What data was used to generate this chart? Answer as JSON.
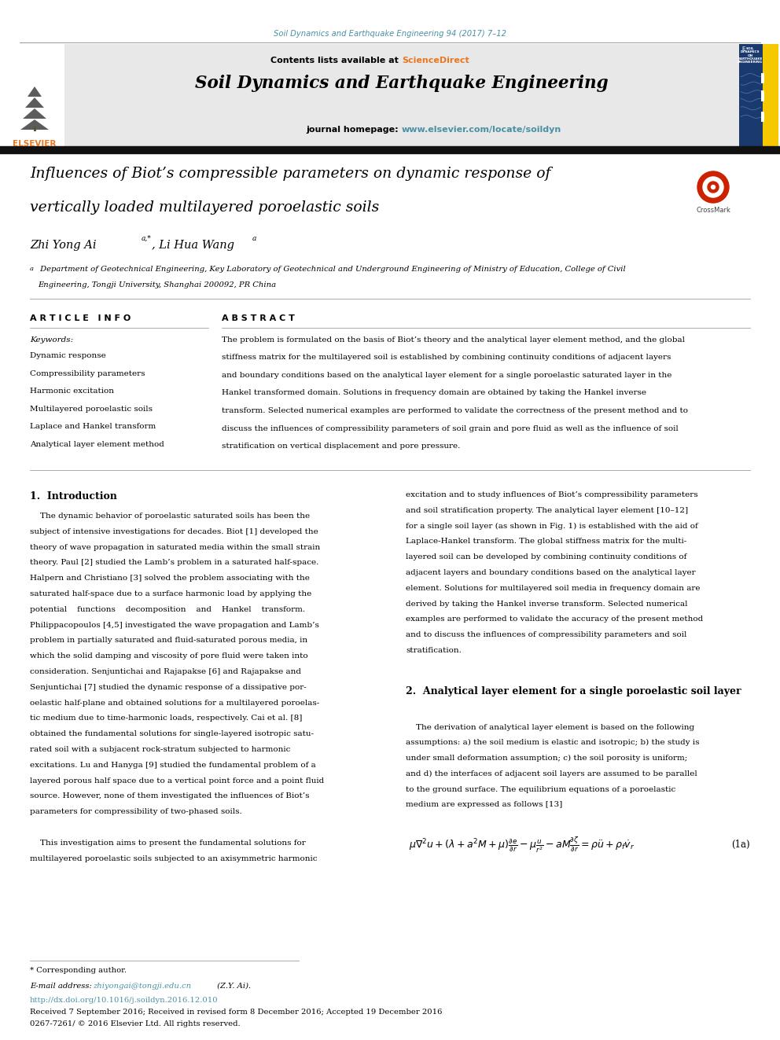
{
  "page_width": 9.92,
  "page_height": 13.23,
  "bg_color": "#ffffff",
  "journal_ref": "Soil Dynamics and Earthquake Engineering 94 (2017) 7–12",
  "journal_ref_color": "#4a90a4",
  "contents_text": "Contents lists available at ",
  "sciencedirect_text": "ScienceDirect",
  "sciencedirect_color": "#e87722",
  "journal_name": "Soil Dynamics and Earthquake Engineering",
  "journal_homepage": "journal homepage: ",
  "journal_url": "www.elsevier.com/locate/soildyn",
  "journal_url_color": "#4a90a4",
  "header_bg": "#e8e8e8",
  "article_title_line1": "Influences of Biot’s compressible parameters on dynamic response of",
  "article_title_line2": "vertically loaded multilayered poroelastic soils",
  "authors": "Zhi Yong Ai",
  "authors_super": "a,*",
  "authors2": ", Li Hua Wang",
  "authors2_super": "a",
  "affiliation_super": "a",
  "affiliation_line1": " Department of Geotechnical Engineering, Key Laboratory of Geotechnical and Underground Engineering of Ministry of Education, College of Civil",
  "affiliation_line2": "Engineering, Tongji University, Shanghai 200092, PR China",
  "article_info_title": "A R T I C L E   I N F O",
  "abstract_title": "A B S T R A C T",
  "keywords_label": "Keywords:",
  "keywords": [
    "Dynamic response",
    "Compressibility parameters",
    "Harmonic excitation",
    "Multilayered poroelastic soils",
    "Laplace and Hankel transform",
    "Analytical layer element method"
  ],
  "abstract_text": "The problem is formulated on the basis of Biot’s theory and the analytical layer element method, and the global\nstiffness matrix for the multilayered soil is established by combining continuity conditions of adjacent layers\nand boundary conditions based on the analytical layer element for a single poroelastic saturated layer in the\nHankel transformed domain. Solutions in frequency domain are obtained by taking the Hankel inverse\ntransform. Selected numerical examples are performed to validate the correctness of the present method and to\ndiscuss the influences of compressibility parameters of soil grain and pore fluid as well as the influence of soil\nstratification on vertical displacement and pore pressure.",
  "section1_title": "1.  Introduction",
  "intro_left_lines": [
    "    The dynamic behavior of poroelastic saturated soils has been the",
    "subject of intensive investigations for decades. Biot [1] developed the",
    "theory of wave propagation in saturated media within the small strain",
    "theory. Paul [2] studied the Lamb’s problem in a saturated half-space.",
    "Halpern and Christiano [3] solved the problem associating with the",
    "saturated half-space due to a surface harmonic load by applying the",
    "potential    functions    decomposition    and    Hankel    transform.",
    "Philippacopoulos [4,5] investigated the wave propagation and Lamb’s",
    "problem in partially saturated and fluid-saturated porous media, in",
    "which the solid damping and viscosity of pore fluid were taken into",
    "consideration. Senjuntichai and Rajapakse [6] and Rajapakse and",
    "Senjuntichai [7] studied the dynamic response of a dissipative por-",
    "oelastic half-plane and obtained solutions for a multilayered poroelas-",
    "tic medium due to time-harmonic loads, respectively. Cai et al. [8]",
    "obtained the fundamental solutions for single-layered isotropic satu-",
    "rated soil with a subjacent rock-stratum subjected to harmonic",
    "excitations. Lu and Hanyga [9] studied the fundamental problem of a",
    "layered porous half space due to a vertical point force and a point fluid",
    "source. However, none of them investigated the influences of Biot’s",
    "parameters for compressibility of two-phased soils.",
    "",
    "    This investigation aims to present the fundamental solutions for",
    "multilayered poroelastic soils subjected to an axisymmetric harmonic"
  ],
  "intro_right_lines": [
    "excitation and to study influences of Biot’s compressibility parameters",
    "and soil stratification property. The analytical layer element [10–12]",
    "for a single soil layer (as shown in Fig. 1) is established with the aid of",
    "Laplace-Hankel transform. The global stiffness matrix for the multi-",
    "layered soil can be developed by combining continuity conditions of",
    "adjacent layers and boundary conditions based on the analytical layer",
    "element. Solutions for multilayered soil media in frequency domain are",
    "derived by taking the Hankel inverse transform. Selected numerical",
    "examples are performed to validate the accuracy of the present method",
    "and to discuss the influences of compressibility parameters and soil",
    "stratification."
  ],
  "section2_title": "2.  Analytical layer element for a single poroelastic soil layer",
  "section2_lines": [
    "    The derivation of analytical layer element is based on the following",
    "assumptions: a) the soil medium is elastic and isotropic; b) the study is",
    "under small deformation assumption; c) the soil porosity is uniform;",
    "and d) the interfaces of adjacent soil layers are assumed to be parallel",
    "to the ground surface. The equilibrium equations of a poroelastic",
    "medium are expressed as follows [13]"
  ],
  "equation_label": "(1a)",
  "footer_star": "* Corresponding author.",
  "footer_email_label": "E-mail address: ",
  "footer_email": "zhiyongai@tongji.edu.cn",
  "footer_email_suffix": " (Z.Y. Ai).",
  "footer_doi": "http://dx.doi.org/10.1016/j.soildyn.2016.12.010",
  "footer_received": "Received 7 September 2016; Received in revised form 8 December 2016; Accepted 19 December 2016",
  "footer_rights": "0267-7261/ © 2016 Elsevier Ltd. All rights reserved.",
  "elsevier_orange": "#e87722",
  "ref_color": "#4a90a4",
  "cover_blue": "#1a3a6e",
  "cover_yellow": "#f5c800"
}
